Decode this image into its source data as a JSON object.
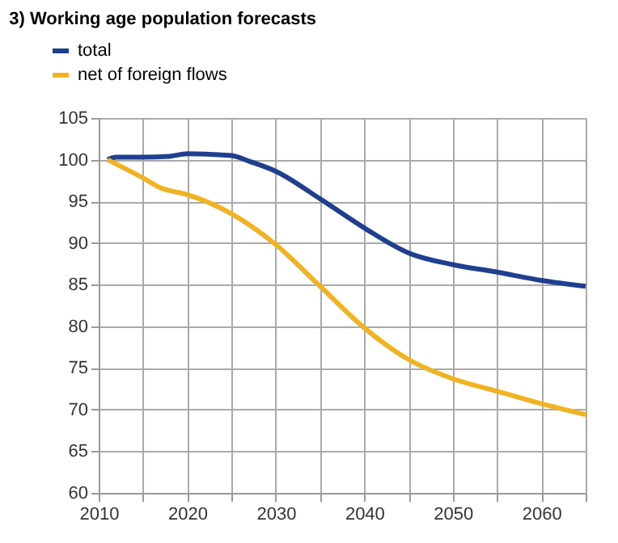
{
  "chart_data": {
    "type": "line",
    "title": "3) Working age population forecasts",
    "x": [
      2011,
      2012,
      2015,
      2018,
      2020,
      2025,
      2027,
      2030,
      2035,
      2040,
      2045,
      2050,
      2055,
      2060,
      2065
    ],
    "series": [
      {
        "name": "total",
        "color": "#1f3f8f",
        "values": [
          100,
          100.3,
          100.3,
          100.4,
          100.7,
          100.5,
          99.8,
          98.6,
          95.3,
          91.8,
          88.8,
          87.4,
          86.5,
          85.5,
          84.8
        ]
      },
      {
        "name": "net of foreign flows",
        "color": "#f0b323",
        "x": [
          2011,
          2015,
          2017,
          2020,
          2025,
          2030,
          2035,
          2040,
          2045,
          2050,
          2055,
          2060,
          2065
        ],
        "values": [
          100,
          97.8,
          96.6,
          95.8,
          93.5,
          89.8,
          84.8,
          79.8,
          76.0,
          73.7,
          72.2,
          70.7,
          69.4
        ]
      }
    ],
    "xlim": [
      2010,
      2065
    ],
    "xticks": [
      2010,
      {
        "value": 2015,
        "label": null
      },
      2020,
      {
        "value": 2025,
        "label": null
      },
      2030,
      {
        "value": 2035,
        "label": null
      },
      2040,
      {
        "value": 2045,
        "label": null
      },
      2050,
      {
        "value": 2055,
        "label": null
      },
      2060,
      {
        "value": 2065,
        "label": null
      }
    ],
    "ylim": [
      60,
      105
    ],
    "yticks": [
      60,
      65,
      70,
      75,
      80,
      85,
      90,
      95,
      100,
      105
    ],
    "grid": true,
    "legend": "top left",
    "marker": "none",
    "line_style": "solid"
  }
}
